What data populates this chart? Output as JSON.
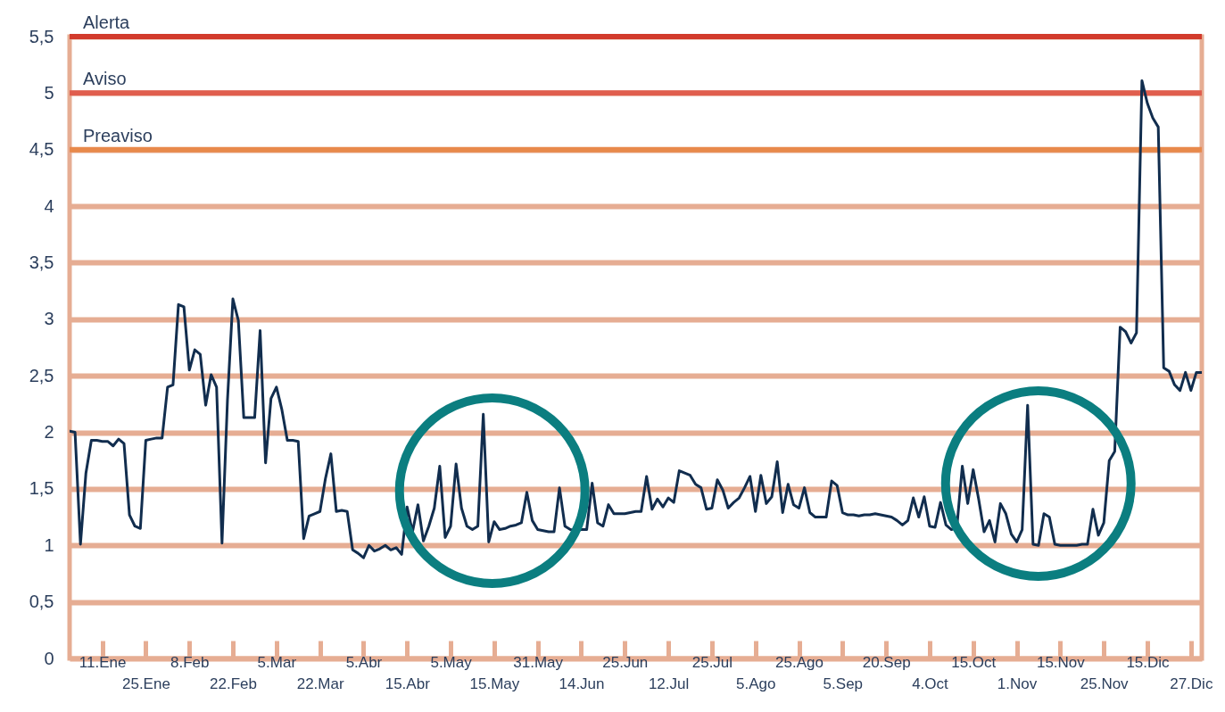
{
  "chart_data": {
    "type": "line",
    "categories": [
      null,
      null,
      null,
      null,
      null,
      null,
      "11.Ene",
      null,
      null,
      null,
      null,
      null,
      null,
      null,
      "25.Ene",
      null,
      null,
      null,
      null,
      null,
      null,
      null,
      "8.Feb",
      null,
      null,
      null,
      null,
      null,
      null,
      null,
      "22.Feb",
      null,
      null,
      null,
      null,
      null,
      null,
      null,
      "5.Mar",
      null,
      null,
      null,
      null,
      null,
      null,
      null,
      "22.Mar",
      null,
      null,
      null,
      null,
      null,
      null,
      null,
      "5.Abr",
      null,
      null,
      null,
      null,
      null,
      null,
      null,
      "15.Abr",
      null,
      null,
      null,
      null,
      null,
      null,
      null,
      "5.May",
      null,
      null,
      null,
      null,
      null,
      null,
      null,
      "15.May",
      null,
      null,
      null,
      null,
      null,
      null,
      null,
      "31.May",
      null,
      null,
      null,
      null,
      null,
      null,
      null,
      "14.Jun",
      null,
      null,
      null,
      null,
      null,
      null,
      null,
      "25.Jun",
      null,
      null,
      null,
      null,
      null,
      null,
      null,
      "12.Jul",
      null,
      null,
      null,
      null,
      null,
      null,
      null,
      "25.Jul",
      null,
      null,
      null,
      null,
      null,
      null,
      null,
      "5.Ago",
      null,
      null,
      null,
      null,
      null,
      null,
      null,
      "25.Ago",
      null,
      null,
      null,
      null,
      null,
      null,
      null,
      "5.Sep",
      null,
      null,
      null,
      null,
      null,
      null,
      null,
      "20.Sep",
      null,
      null,
      null,
      null,
      null,
      null,
      null,
      "4.Oct",
      null,
      null,
      null,
      null,
      null,
      null,
      null,
      "15.Oct",
      null,
      null,
      null,
      null,
      null,
      null,
      null,
      "1.Nov",
      null,
      null,
      null,
      null,
      null,
      null,
      null,
      "15.Nov",
      null,
      null,
      null,
      null,
      null,
      null,
      null,
      "25.Nov",
      null,
      null,
      null,
      null,
      null,
      null,
      null,
      "15.Dic",
      null,
      null,
      null,
      null,
      null,
      null,
      null,
      "27.Dic",
      null,
      null
    ],
    "series": [
      {
        "color": "#112d4e",
        "values": [
          2.01,
          2.0,
          1.01,
          1.64,
          1.93,
          1.93,
          1.92,
          1.92,
          1.88,
          1.94,
          1.9,
          1.27,
          1.17,
          1.15,
          1.93,
          1.94,
          1.95,
          1.95,
          2.4,
          2.42,
          3.13,
          3.11,
          2.55,
          2.73,
          2.69,
          2.24,
          2.51,
          2.4,
          1.02,
          2.28,
          3.18,
          2.99,
          2.13,
          2.13,
          2.13,
          2.9,
          1.73,
          2.3,
          2.4,
          2.2,
          1.93,
          1.93,
          1.92,
          1.06,
          1.26,
          1.28,
          1.3,
          1.59,
          1.81,
          1.3,
          1.31,
          1.3,
          0.96,
          0.93,
          0.89,
          1.0,
          0.95,
          0.97,
          1.0,
          0.96,
          0.98,
          0.92,
          1.34,
          1.12,
          1.36,
          1.04,
          1.17,
          1.33,
          1.7,
          1.07,
          1.17,
          1.72,
          1.33,
          1.17,
          1.14,
          1.17,
          2.16,
          1.03,
          1.21,
          1.14,
          1.15,
          1.17,
          1.18,
          1.2,
          1.47,
          1.22,
          1.14,
          1.13,
          1.12,
          1.12,
          1.51,
          1.17,
          1.14,
          1.13,
          1.14,
          1.14,
          1.55,
          1.2,
          1.17,
          1.36,
          1.28,
          1.28,
          1.28,
          1.29,
          1.3,
          1.3,
          1.61,
          1.32,
          1.41,
          1.34,
          1.42,
          1.38,
          1.66,
          1.64,
          1.62,
          1.54,
          1.51,
          1.32,
          1.33,
          1.58,
          1.49,
          1.33,
          1.38,
          1.42,
          1.51,
          1.61,
          1.3,
          1.62,
          1.37,
          1.43,
          1.74,
          1.29,
          1.54,
          1.36,
          1.33,
          1.51,
          1.29,
          1.25,
          1.25,
          1.25,
          1.57,
          1.53,
          1.29,
          1.27,
          1.27,
          1.26,
          1.27,
          1.27,
          1.28,
          1.27,
          1.26,
          1.25,
          1.22,
          1.18,
          1.22,
          1.42,
          1.25,
          1.43,
          1.17,
          1.16,
          1.38,
          1.18,
          1.14,
          1.16,
          1.7,
          1.37,
          1.67,
          1.41,
          1.12,
          1.22,
          1.03,
          1.37,
          1.28,
          1.1,
          1.03,
          1.14,
          2.24,
          1.01,
          1.0,
          1.28,
          1.25,
          1.01,
          1.0,
          1.0,
          1.0,
          1.0,
          1.01,
          1.01,
          1.32,
          1.09,
          1.2,
          1.75,
          1.83,
          2.93,
          2.89,
          2.79,
          2.88,
          5.11,
          4.91,
          4.78,
          4.7,
          2.57,
          2.54,
          2.42,
          2.37,
          2.53,
          2.37,
          2.53,
          2.53
        ]
      }
    ],
    "ylim": [
      0,
      5.5
    ],
    "yticks": [
      0,
      {
        "value": 0.5,
        "label": "0,5"
      },
      1,
      {
        "value": 1.5,
        "label": "1,5"
      },
      2,
      {
        "value": 2.5,
        "label": "2,5"
      },
      3,
      {
        "value": 3.5,
        "label": "3,5"
      },
      4,
      {
        "value": 4.5,
        "label": "4,5"
      },
      5,
      {
        "value": 5.5,
        "label": "5,5"
      }
    ],
    "ref_lines": [
      {
        "axis": "y",
        "value": 5.5,
        "label": "Alerta",
        "color": "#d23b2c"
      },
      {
        "axis": "y",
        "value": 5,
        "label": "Aviso",
        "color": "#e05e4e"
      },
      {
        "axis": "y",
        "value": 4.5,
        "label": "Preaviso",
        "color": "#e8894b"
      }
    ],
    "grid": "y",
    "marker": "none",
    "line_style": "solid"
  }
}
